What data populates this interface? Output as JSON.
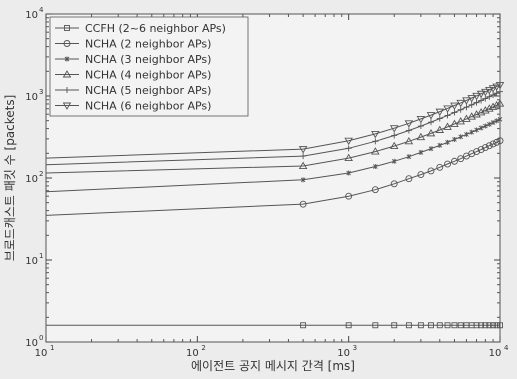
{
  "chart_data": {
    "type": "line",
    "xlabel": "에이전트 공지 메시지 간격 [ms]",
    "ylabel": "브로드캐스트 패킷 수 [packets]",
    "x_scale": "log",
    "y_scale": "log",
    "xlim": [
      10,
      10000
    ],
    "ylim": [
      1,
      10000
    ],
    "grid": false,
    "legend_position": "top-left",
    "x_ticks": [
      {
        "base": "10",
        "exp": "1"
      },
      {
        "base": "10",
        "exp": "2"
      },
      {
        "base": "10",
        "exp": "3"
      },
      {
        "base": "10",
        "exp": "4"
      }
    ],
    "y_ticks": [
      {
        "base": "10",
        "exp": "0"
      },
      {
        "base": "10",
        "exp": "1"
      },
      {
        "base": "10",
        "exp": "2"
      },
      {
        "base": "10",
        "exp": "3"
      },
      {
        "base": "10",
        "exp": "4"
      }
    ],
    "x": [
      10,
      500,
      1000,
      1500,
      2000,
      2500,
      3000,
      3500,
      4000,
      4500,
      5000,
      5500,
      6000,
      6500,
      7000,
      7500,
      8000,
      8500,
      9000,
      9500,
      10000
    ],
    "series": [
      {
        "name": "CCFH (2~6 neighbor APs)",
        "marker": "square",
        "values": [
          1.6,
          1.6,
          1.6,
          1.6,
          1.6,
          1.6,
          1.6,
          1.6,
          1.6,
          1.6,
          1.6,
          1.6,
          1.6,
          1.6,
          1.6,
          1.6,
          1.6,
          1.6,
          1.6,
          1.6,
          1.6
        ]
      },
      {
        "name": "NCHA (2 neighbor APs)",
        "marker": "circle",
        "values": [
          35,
          48,
          60,
          72,
          85,
          98,
          110,
          122,
          135,
          148,
          160,
          172,
          185,
          198,
          210,
          222,
          235,
          248,
          260,
          272,
          285
        ]
      },
      {
        "name": "NCHA (3 neighbor APs)",
        "marker": "star",
        "values": [
          68,
          95,
          115,
          138,
          160,
          182,
          205,
          228,
          250,
          272,
          295,
          318,
          340,
          362,
          385,
          408,
          430,
          452,
          475,
          498,
          520
        ]
      },
      {
        "name": "NCHA (4 neighbor APs)",
        "marker": "triangle-up",
        "values": [
          115,
          140,
          175,
          210,
          245,
          280,
          315,
          350,
          385,
          420,
          455,
          490,
          525,
          560,
          595,
          630,
          665,
          700,
          735,
          770,
          805
        ]
      },
      {
        "name": "NCHA (5 neighbor APs)",
        "marker": "plus",
        "values": [
          145,
          185,
          230,
          280,
          330,
          380,
          430,
          480,
          530,
          580,
          630,
          680,
          730,
          780,
          830,
          880,
          930,
          980,
          1030,
          1080,
          1130
        ]
      },
      {
        "name": "NCHA (6 neighbor APs)",
        "marker": "triangle-down",
        "values": [
          175,
          225,
          285,
          345,
          405,
          465,
          525,
          585,
          645,
          705,
          765,
          825,
          885,
          945,
          1005,
          1065,
          1125,
          1185,
          1245,
          1305,
          1365
        ]
      }
    ]
  }
}
